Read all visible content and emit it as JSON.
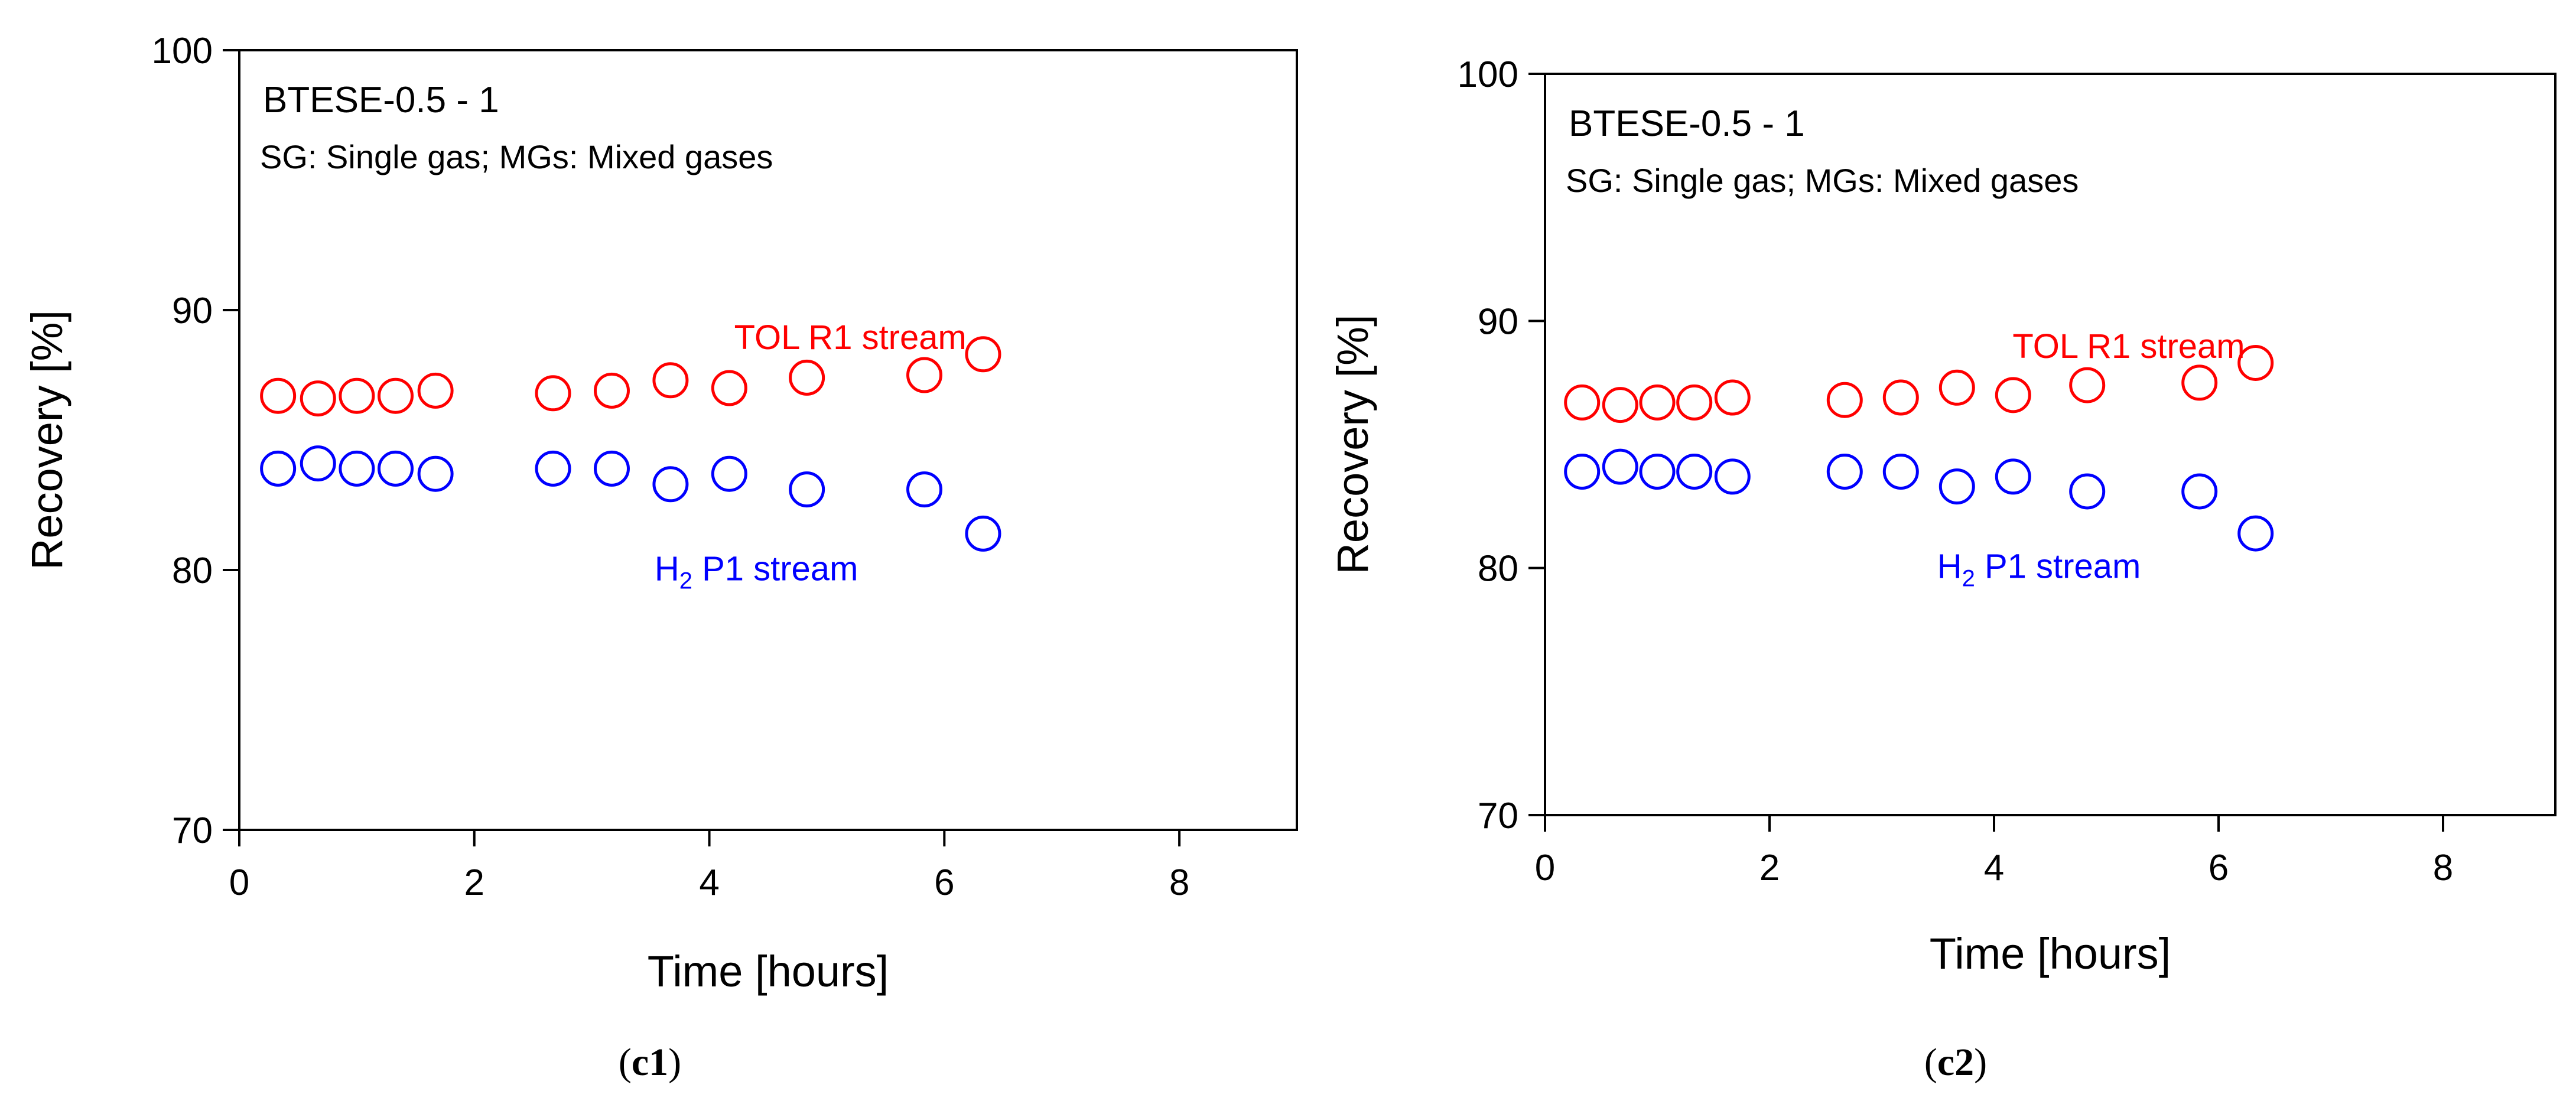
{
  "chart_data": [
    {
      "type": "scatter",
      "panel_label": {
        "prefix": "(",
        "id": "c1",
        "suffix": ")"
      },
      "title": "BTESE-0.5 - 1",
      "subtitle": "SG: Single gas; MGs: Mixed gases",
      "xlabel": "Time [hours]",
      "ylabel": "Recovery [%]",
      "xlim": [
        0,
        9
      ],
      "ylim": [
        70,
        100
      ],
      "x_ticks": [
        0,
        2,
        4,
        6,
        8
      ],
      "y_ticks": [
        70,
        80,
        90,
        100
      ],
      "series": [
        {
          "name": "TOL R1 stream",
          "label_parts": [
            "TOL R1 stream"
          ],
          "color": "#ff0000",
          "label_pos": [
            5.2,
            88.5
          ],
          "x": [
            0.33,
            0.67,
            1.0,
            1.33,
            1.67,
            2.67,
            3.17,
            3.67,
            4.17,
            4.83,
            5.83,
            6.33
          ],
          "y": [
            86.7,
            86.6,
            86.7,
            86.7,
            86.9,
            86.8,
            86.9,
            87.3,
            87.0,
            87.4,
            87.5,
            88.3
          ]
        },
        {
          "name": "H2 P1 stream",
          "label_parts": [
            "H",
            "2",
            " P1 stream"
          ],
          "color": "#0000ff",
          "label_pos": [
            4.4,
            79.6
          ],
          "x": [
            0.33,
            0.67,
            1.0,
            1.33,
            1.67,
            2.67,
            3.17,
            3.67,
            4.17,
            4.83,
            5.83,
            6.33
          ],
          "y": [
            83.9,
            84.1,
            83.9,
            83.9,
            83.7,
            83.9,
            83.9,
            83.3,
            83.7,
            83.1,
            83.1,
            81.4
          ]
        }
      ]
    },
    {
      "type": "scatter",
      "panel_label": {
        "prefix": "(",
        "id": "c2",
        "suffix": ")"
      },
      "title": "BTESE-0.5 - 1",
      "subtitle": "SG: Single gas; MGs: Mixed gases",
      "xlabel": "Time [hours]",
      "ylabel": "Recovery [%]",
      "xlim": [
        0,
        9
      ],
      "ylim": [
        70,
        100
      ],
      "x_ticks": [
        0,
        2,
        4,
        6,
        8
      ],
      "y_ticks": [
        70,
        80,
        90,
        100
      ],
      "series": [
        {
          "name": "TOL R1 stream",
          "label_parts": [
            "TOL R1 stream"
          ],
          "color": "#ff0000",
          "label_pos": [
            5.2,
            88.5
          ],
          "x": [
            0.33,
            0.67,
            1.0,
            1.33,
            1.67,
            2.67,
            3.17,
            3.67,
            4.17,
            4.83,
            5.83,
            6.33
          ],
          "y": [
            86.7,
            86.6,
            86.7,
            86.7,
            86.9,
            86.8,
            86.9,
            87.3,
            87.0,
            87.4,
            87.5,
            88.3
          ]
        },
        {
          "name": "H2 P1 stream",
          "label_parts": [
            "H",
            "2",
            " P1 stream"
          ],
          "color": "#0000ff",
          "label_pos": [
            4.4,
            79.6
          ],
          "x": [
            0.33,
            0.67,
            1.0,
            1.33,
            1.67,
            2.67,
            3.17,
            3.67,
            4.17,
            4.83,
            5.83,
            6.33
          ],
          "y": [
            83.9,
            84.1,
            83.9,
            83.9,
            83.7,
            83.9,
            83.9,
            83.3,
            83.7,
            83.1,
            83.1,
            81.4
          ]
        }
      ]
    }
  ]
}
